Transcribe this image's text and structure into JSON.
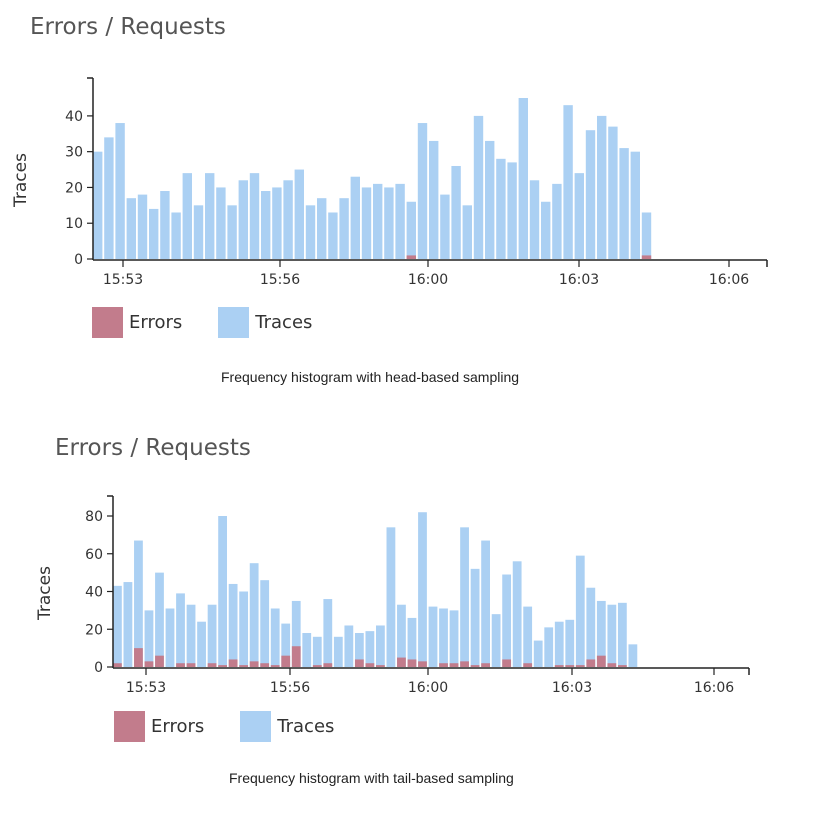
{
  "colors": {
    "errors": "#c27c8c",
    "traces": "#abd0f3",
    "axis": "#222222"
  },
  "legend": {
    "errors_label": "Errors",
    "traces_label": "Traces"
  },
  "chart_data": [
    {
      "type": "bar",
      "title": "Errors / Requests",
      "caption": "Frequency histogram with head-based sampling",
      "ylabel": "Traces",
      "xlabel": "",
      "ylim": [
        0,
        45
      ],
      "yticks": [
        0,
        10,
        20,
        30,
        40
      ],
      "xticks": [
        "15:53",
        "15:56",
        "16:00",
        "16:03",
        "16:06"
      ],
      "series": [
        {
          "name": "Traces",
          "values": [
            30,
            34,
            38,
            17,
            18,
            14,
            19,
            13,
            24,
            15,
            24,
            20,
            15,
            22,
            24,
            19,
            20,
            22,
            25,
            15,
            17,
            13,
            17,
            23,
            20,
            21,
            20,
            21,
            16,
            38,
            33,
            18,
            26,
            15,
            40,
            33,
            28,
            27,
            45,
            22,
            16,
            21,
            43,
            24,
            36,
            40,
            37,
            31,
            30,
            13
          ]
        },
        {
          "name": "Errors",
          "values": [
            0,
            0,
            0,
            0,
            0,
            0,
            0,
            0,
            0,
            0,
            0,
            0,
            0,
            0,
            0,
            0,
            0,
            0,
            0,
            0,
            0,
            0,
            0,
            0,
            0,
            0,
            0,
            0,
            1,
            0,
            0,
            0,
            0,
            0,
            0,
            0,
            0,
            0,
            0,
            0,
            0,
            0,
            0,
            0,
            0,
            0,
            0,
            0,
            0,
            1
          ]
        }
      ]
    },
    {
      "type": "bar",
      "title": "Errors / Requests",
      "caption": "Frequency histogram with tail-based sampling",
      "ylabel": "Traces",
      "xlabel": "",
      "ylim": [
        0,
        80
      ],
      "yticks": [
        0,
        20,
        40,
        60,
        80
      ],
      "xticks": [
        "15:53",
        "15:56",
        "16:00",
        "16:03",
        "16:06"
      ],
      "series": [
        {
          "name": "Traces",
          "values": [
            43,
            45,
            67,
            30,
            50,
            31,
            39,
            33,
            24,
            33,
            80,
            44,
            40,
            55,
            46,
            31,
            23,
            35,
            18,
            16,
            36,
            16,
            22,
            18,
            19,
            22,
            74,
            33,
            26,
            82,
            32,
            31,
            30,
            74,
            52,
            67,
            28,
            49,
            56,
            32,
            14,
            21,
            24,
            25,
            59,
            42,
            35,
            33,
            34,
            12
          ]
        },
        {
          "name": "Errors",
          "values": [
            2,
            0,
            10,
            3,
            6,
            0,
            2,
            2,
            0,
            2,
            1,
            4,
            1,
            3,
            2,
            1,
            6,
            11,
            0,
            1,
            2,
            0,
            0,
            4,
            2,
            1,
            0,
            5,
            4,
            3,
            0,
            2,
            2,
            3,
            1,
            2,
            0,
            4,
            0,
            2,
            0,
            0,
            1,
            1,
            1,
            4,
            6,
            2,
            1,
            0
          ]
        }
      ]
    }
  ]
}
